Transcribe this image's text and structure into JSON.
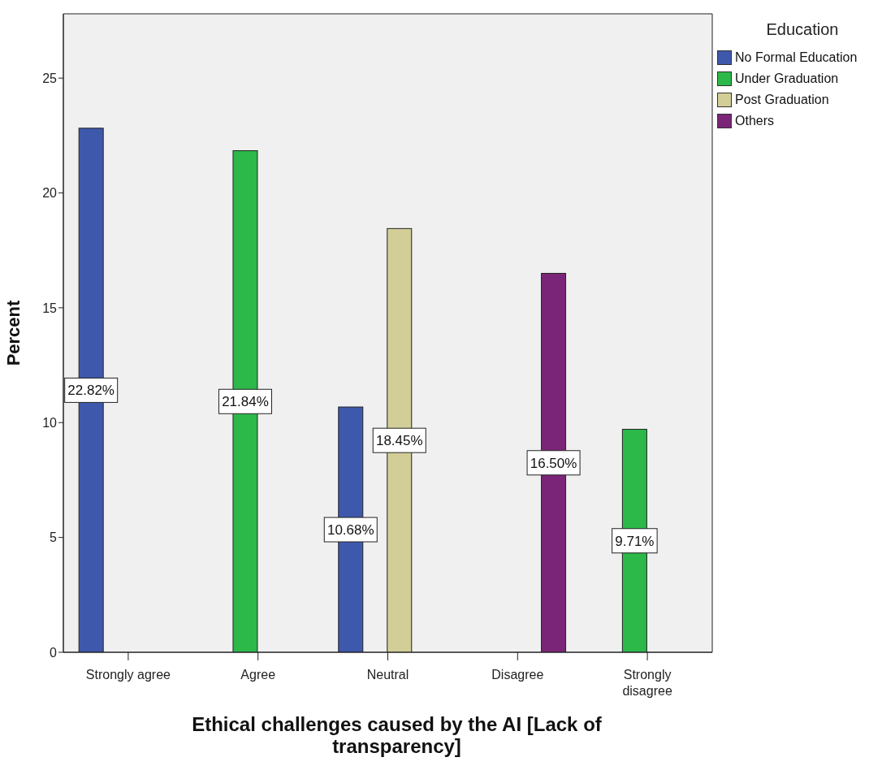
{
  "chart_data": {
    "type": "bar",
    "xlabel": "Ethical challenges caused by the AI [Lack of transparency]",
    "ylabel": "Percent",
    "legend_title": "Education",
    "legend": "top right",
    "categories": [
      "Strongly agree",
      "Agree",
      "Neutral",
      "Disagree",
      "Strongly disagree"
    ],
    "series": [
      {
        "name": "No Formal Education",
        "color": "#3e58ac",
        "values": [
          22.82,
          null,
          10.68,
          null,
          null
        ],
        "value_labels": [
          "22.82%",
          null,
          "10.68%",
          null,
          null
        ]
      },
      {
        "name": "Under Graduation",
        "color": "#2db84a",
        "values": [
          null,
          21.84,
          null,
          null,
          9.71
        ],
        "value_labels": [
          null,
          "21.84%",
          null,
          null,
          "9.71%"
        ]
      },
      {
        "name": "Post Graduation",
        "color": "#d3ce97",
        "values": [
          null,
          null,
          18.45,
          null,
          null
        ],
        "value_labels": [
          null,
          null,
          "18.45%",
          null,
          null
        ]
      },
      {
        "name": "Others",
        "color": "#7b2578",
        "values": [
          null,
          null,
          null,
          16.5,
          null
        ],
        "value_labels": [
          null,
          null,
          null,
          "16.50%",
          null
        ]
      }
    ],
    "ylim": [
      0,
      27.8
    ],
    "yticks": [
      0,
      5,
      10,
      15,
      20,
      25
    ],
    "grid": false
  }
}
